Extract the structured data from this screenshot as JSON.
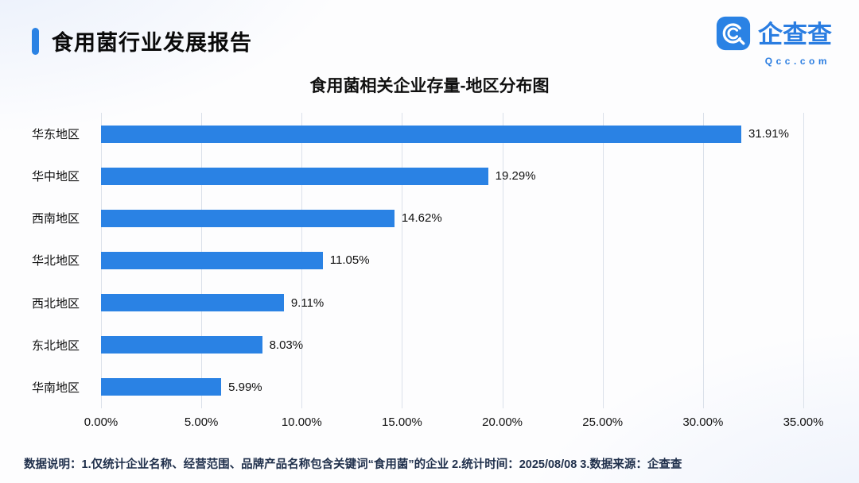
{
  "colors": {
    "accent": "#2A82E4",
    "bar": "#2A82E4",
    "grid": "#dbe1ea",
    "logo_blue": "#2A7DE1"
  },
  "header": {
    "title": "食用菌行业发展报告",
    "logo": {
      "name": "企查查",
      "domain": "Qcc.com"
    }
  },
  "chart_data": {
    "type": "bar",
    "orientation": "horizontal",
    "title": "食用菌相关企业存量-地区分布图",
    "categories": [
      "华东地区",
      "华中地区",
      "西南地区",
      "华北地区",
      "西北地区",
      "东北地区",
      "华南地区"
    ],
    "values": [
      31.91,
      19.29,
      14.62,
      11.05,
      9.11,
      8.03,
      5.99
    ],
    "value_labels": [
      "31.91%",
      "19.29%",
      "14.62%",
      "11.05%",
      "9.11%",
      "8.03%",
      "5.99%"
    ],
    "x_ticks": [
      "0.00%",
      "5.00%",
      "10.00%",
      "15.00%",
      "20.00%",
      "25.00%",
      "30.00%",
      "35.00%"
    ],
    "xlim": [
      0,
      35
    ],
    "grid": true,
    "legend": "none",
    "bar_color": "#2A82E4"
  },
  "footer": {
    "note": "数据说明：1.仅统计企业名称、经营范围、品牌产品名称包含关键词“食用菌”的企业  2.统计时间：2025/08/08   3.数据来源：企查查"
  }
}
